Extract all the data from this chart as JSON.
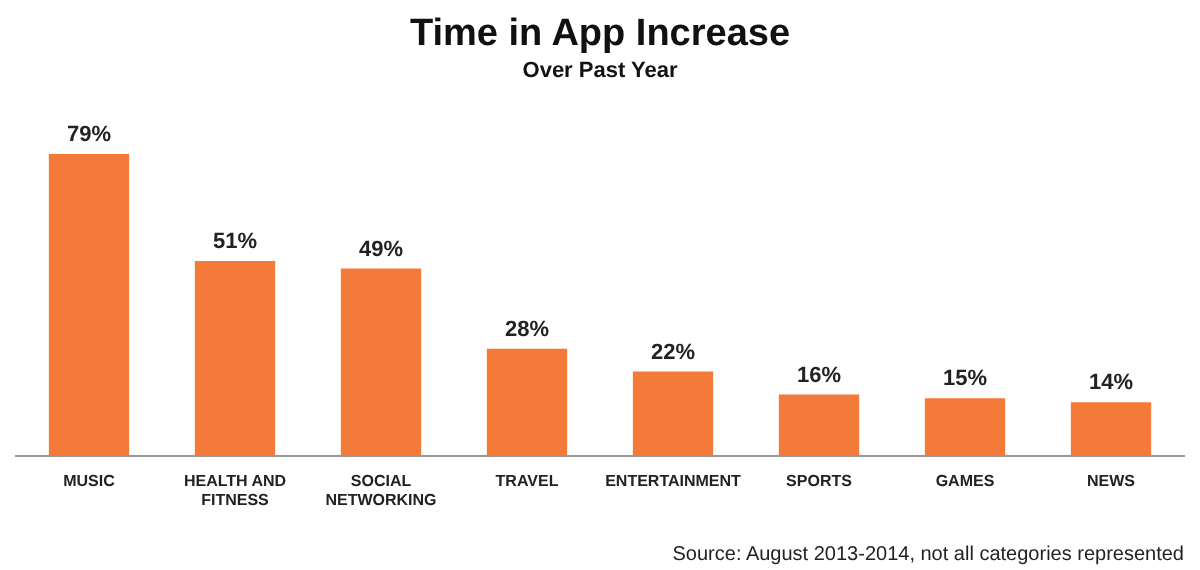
{
  "chart_data": {
    "type": "bar",
    "title": "Time in App Increase",
    "subtitle": "Over Past Year",
    "categories": [
      "MUSIC",
      "HEALTH AND FITNESS",
      "SOCIAL NETWORKING",
      "TRAVEL",
      "ENTERTAINMENT",
      "SPORTS",
      "GAMES",
      "NEWS"
    ],
    "values": [
      79,
      51,
      49,
      28,
      22,
      16,
      15,
      14
    ],
    "value_labels": [
      "79%",
      "51%",
      "49%",
      "28%",
      "22%",
      "16%",
      "15%",
      "14%"
    ],
    "color": "#f47a3a",
    "grid": false,
    "legend": false,
    "annotations": [
      "Source: August 2013-2014, not all categories represented"
    ]
  }
}
